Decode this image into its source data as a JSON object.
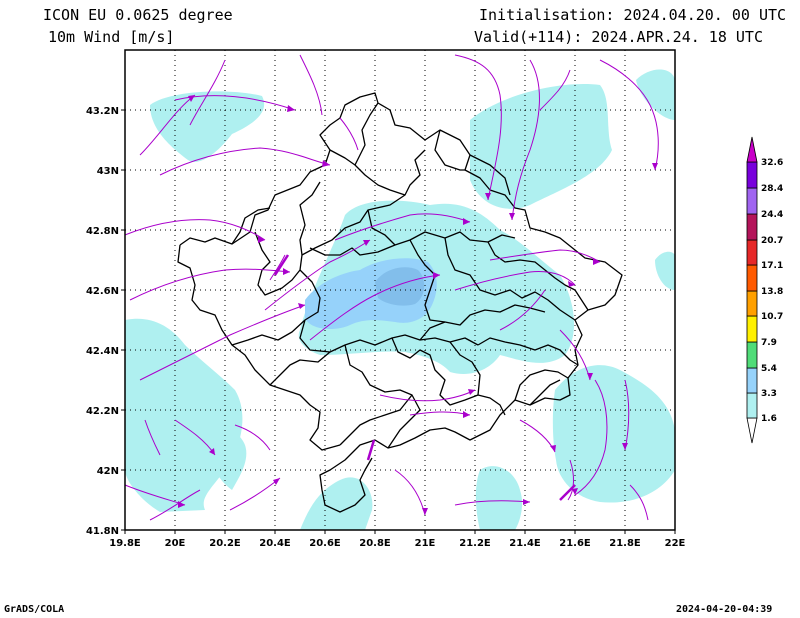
{
  "header": {
    "model": "ICON EU 0.0625 degree",
    "variable": "10m Wind [m/s]",
    "init": "Initialisation: 2024.04.20. 00 UTC",
    "valid": "Valid(+114): 2024.APR.24. 18 UTC"
  },
  "footer": {
    "credit": "GrADS/COLA",
    "timestamp": "2024-04-20-04:39"
  },
  "map": {
    "lon_range": [
      19.8,
      22.0
    ],
    "lat_range": [
      41.8,
      43.4
    ],
    "x_ticks": [
      "19.8E",
      "20E",
      "20.2E",
      "20.4E",
      "20.6E",
      "20.8E",
      "21E",
      "21.2E",
      "21.4E",
      "21.6E",
      "21.8E",
      "22E"
    ],
    "y_ticks": [
      "41.8N",
      "42N",
      "42.2N",
      "42.4N",
      "42.6N",
      "42.8N",
      "43N",
      "43.2N"
    ],
    "grid": "dotted",
    "fill_colors": {
      "calm": "#ffffff",
      "light": "#aff0f0",
      "medium": "#96d2fa",
      "strong": "#82beeb",
      "streamline": "#aa00cc",
      "border": "#000000"
    }
  },
  "colorbar": {
    "levels": [
      "1.6",
      "3.3",
      "5.4",
      "7.9",
      "10.7",
      "13.8",
      "17.1",
      "20.7",
      "24.4",
      "28.4",
      "32.6"
    ],
    "colors": [
      "#aff0f0",
      "#96d2fa",
      "#50dc78",
      "#fff000",
      "#ffa000",
      "#ff5a00",
      "#e62828",
      "#b4145a",
      "#a064f0",
      "#7800dc",
      "#c800c8"
    ]
  }
}
